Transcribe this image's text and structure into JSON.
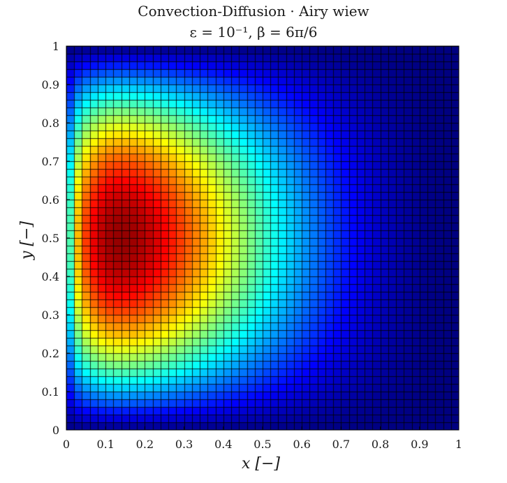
{
  "chart_data": {
    "type": "heatmap",
    "title": "Convection-Diffusion · Airy wiew",
    "subtitle": "ε = 10⁻¹, β = 6π/6",
    "xlabel": "x [−]",
    "ylabel": "y [−]",
    "xlim": [
      0,
      1
    ],
    "ylim": [
      0,
      1
    ],
    "x_ticks": [
      "0",
      "0.1",
      "0.2",
      "0.3",
      "0.4",
      "0.5",
      "0.6",
      "0.7",
      "0.8",
      "0.9",
      "1"
    ],
    "y_ticks": [
      "0",
      "0.1",
      "0.2",
      "0.3",
      "0.4",
      "0.5",
      "0.6",
      "0.7",
      "0.8",
      "0.9",
      "1"
    ],
    "grid_cells": [
      50,
      50
    ],
    "colormap": "jet",
    "peak": {
      "x": 0.17,
      "y": 0.5
    },
    "edge_color": "#000000",
    "grid": true
  }
}
